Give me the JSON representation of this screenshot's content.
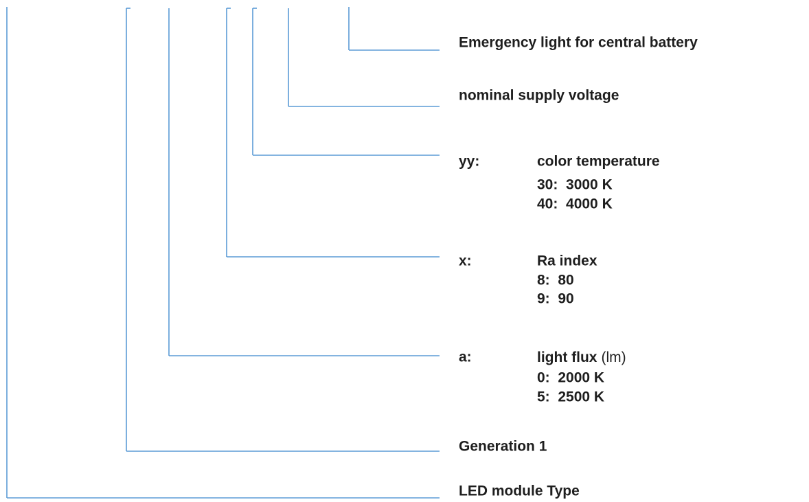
{
  "items": [
    {
      "label": "Emergency light for central battery"
    },
    {
      "label": "nominal supply voltage"
    },
    {
      "code": "yy:",
      "label": "color temperature",
      "options": [
        "30:  3000 K",
        "40:  4000 K"
      ]
    },
    {
      "code": "x:",
      "label": "Ra index",
      "options": [
        "8:  80",
        "9:  90"
      ]
    },
    {
      "code": "a:",
      "label": "light flux",
      "unit": "(lm)",
      "options": [
        "0:  2000 K",
        "5:  2500 K"
      ]
    },
    {
      "label": "Generation 1"
    },
    {
      "label": "LED module Type"
    }
  ]
}
